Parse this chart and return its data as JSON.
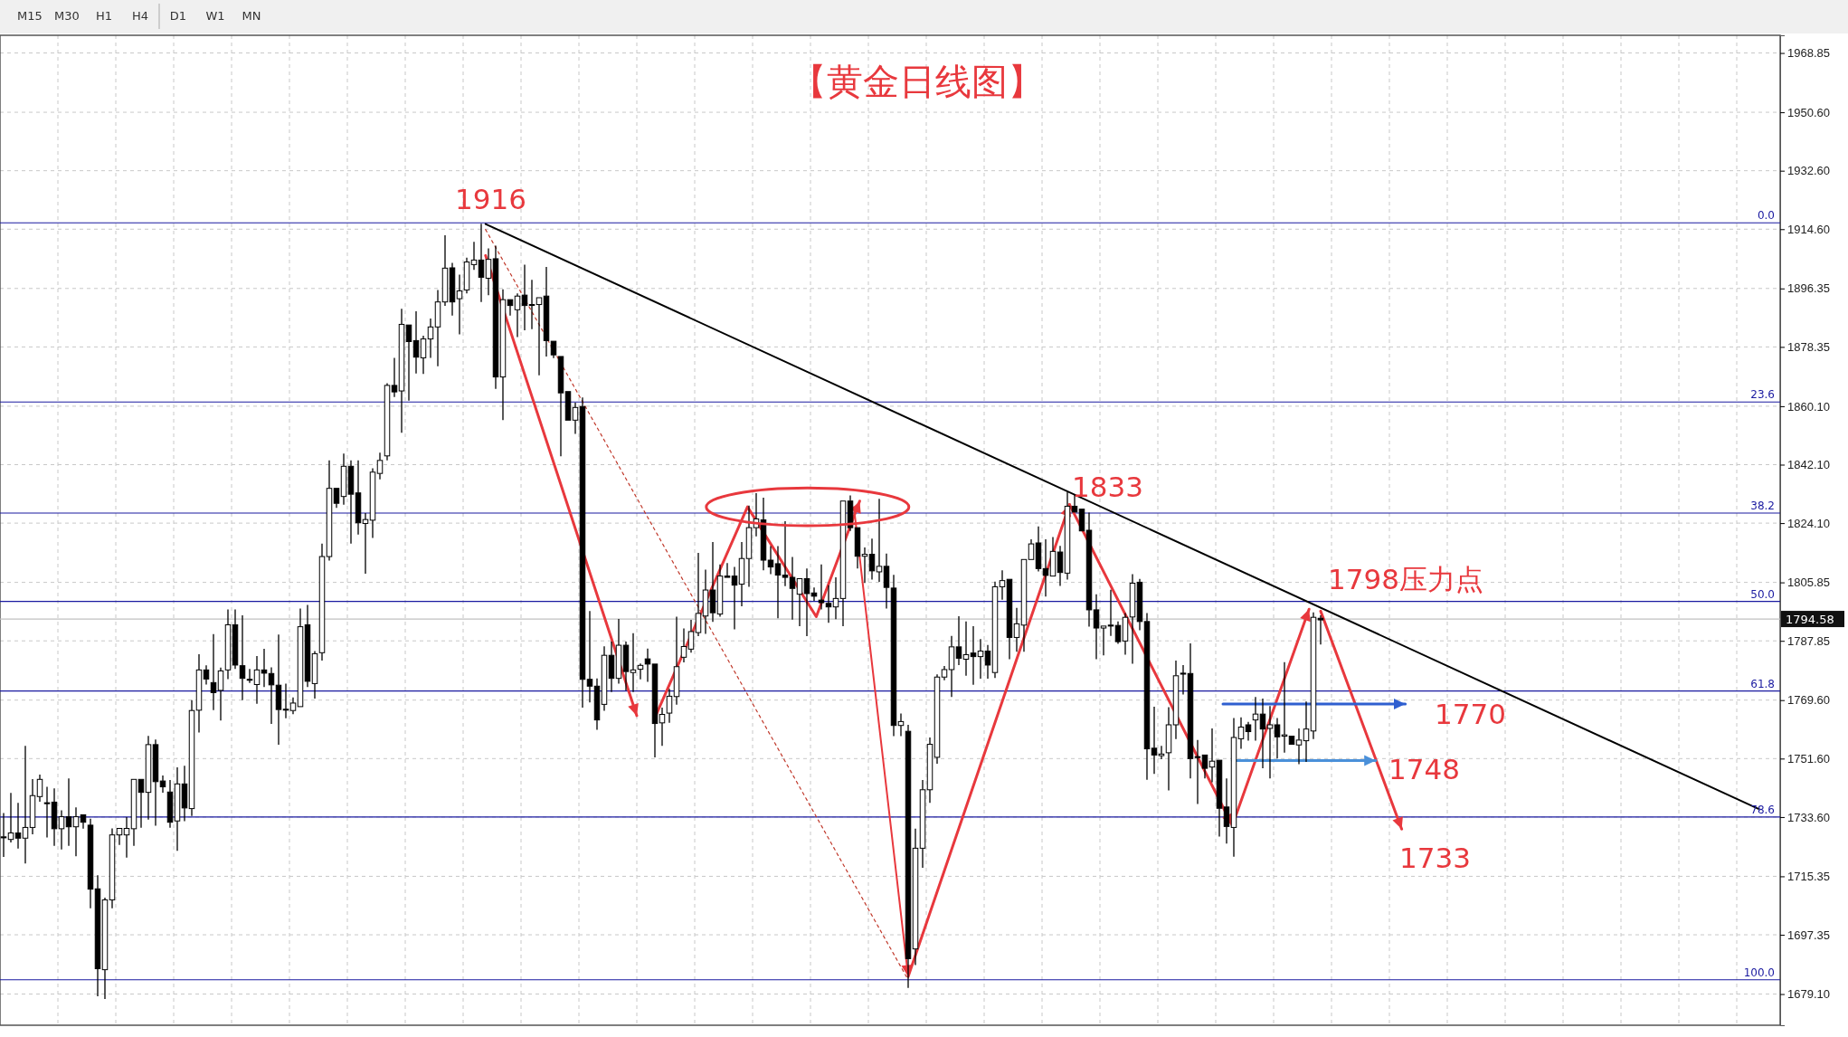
{
  "chart_data": {
    "type": "candlestick",
    "title": "【黄金日线图】",
    "categories": [
      null,
      null,
      null,
      null,
      null,
      null,
      null,
      null,
      null,
      null,
      null,
      null,
      null,
      null,
      null,
      null,
      null,
      null,
      null,
      null,
      null,
      null,
      null,
      null,
      null,
      null,
      null,
      null,
      null,
      null,
      null,
      null,
      null,
      null,
      null,
      null,
      null,
      null,
      null,
      null,
      null,
      null,
      null,
      null,
      null,
      null,
      null,
      null,
      null,
      null,
      null,
      null,
      null,
      null,
      null,
      null,
      null,
      null,
      null,
      null,
      null,
      null,
      null,
      null,
      null,
      null,
      null,
      null,
      null,
      null,
      null,
      null,
      null,
      null,
      null,
      null,
      null,
      null,
      null,
      null,
      null,
      null,
      null,
      null,
      null,
      null,
      null,
      null,
      null,
      null,
      null,
      null,
      null,
      null,
      null,
      null,
      null,
      null,
      null,
      null,
      null,
      null,
      null,
      null,
      null,
      null,
      null,
      null,
      null,
      null,
      null,
      null,
      null,
      null,
      null,
      null,
      null,
      null,
      null,
      null,
      null,
      null,
      null,
      null,
      null,
      null,
      null,
      null,
      null,
      null,
      null,
      null,
      null,
      null,
      null,
      null,
      null,
      null,
      null,
      null,
      null,
      null,
      null,
      null,
      null,
      null,
      null,
      null,
      null,
      null,
      null,
      null,
      null,
      null,
      null,
      null,
      null,
      null,
      null,
      null,
      null,
      null,
      null,
      null,
      null,
      null,
      null,
      null,
      null,
      null,
      null,
      null,
      null,
      null,
      null,
      null,
      null,
      null,
      null,
      null,
      null,
      null,
      null,
      null,
      null,
      null,
      null,
      null,
      null,
      null,
      null,
      null,
      null,
      null,
      null,
      null,
      null,
      null,
      null,
      null,
      null,
      null,
      null,
      null,
      null,
      null,
      null,
      null,
      null,
      null,
      null,
      null,
      null,
      null,
      null,
      null,
      null,
      null,
      null,
      null,
      null,
      null,
      null,
      null,
      null,
      null,
      null,
      null,
      null,
      null,
      null,
      null,
      null,
      null,
      null,
      null,
      null,
      null,
      null,
      null,
      null,
      null,
      null,
      null,
      null,
      null
    ],
    "ohlc": [
      [
        1727.5,
        1734.8,
        1721.3,
        1727.2
      ],
      [
        1726.7,
        1741.0,
        1725.8,
        1728.7
      ],
      [
        1728.7,
        1738.0,
        1723.9,
        1727.1
      ],
      [
        1727.1,
        1755.5,
        1719.3,
        1730.4
      ],
      [
        1730.4,
        1745.3,
        1728.3,
        1740.2
      ],
      [
        1739.9,
        1746.7,
        1738.3,
        1745.2
      ],
      [
        1738.0,
        1742.9,
        1727.3,
        1737.8
      ],
      [
        1738.2,
        1742.4,
        1724.7,
        1730.0
      ],
      [
        1730.0,
        1735.7,
        1723.6,
        1733.7
      ],
      [
        1733.7,
        1745.5,
        1724.7,
        1730.6
      ],
      [
        1730.6,
        1736.6,
        1721.5,
        1733.7
      ],
      [
        1734.3,
        1734.8,
        1730.0,
        1732.0
      ],
      [
        1731.1,
        1733.1,
        1705.5,
        1711.4
      ],
      [
        1711.5,
        1715.7,
        1678.4,
        1686.9
      ],
      [
        1686.6,
        1708.8,
        1677.6,
        1708.1
      ],
      [
        1708.1,
        1730.1,
        1705.5,
        1728.1
      ],
      [
        1728.1,
        1730.1,
        1725.0,
        1730.1
      ],
      [
        1728.1,
        1733.6,
        1721.1,
        1730.1
      ],
      [
        1730.0,
        1745.2,
        1724.7,
        1745.2
      ],
      [
        1745.2,
        1745.2,
        1730.3,
        1741.2
      ],
      [
        1741.2,
        1758.6,
        1732.8,
        1755.9
      ],
      [
        1755.9,
        1757.5,
        1730.9,
        1744.5
      ],
      [
        1744.7,
        1746.4,
        1741.1,
        1742.9
      ],
      [
        1741.3,
        1745.0,
        1730.3,
        1732.0
      ],
      [
        1732.4,
        1748.9,
        1723.2,
        1743.8
      ],
      [
        1743.8,
        1749.4,
        1732.3,
        1736.4
      ],
      [
        1736.2,
        1769.6,
        1733.9,
        1766.4
      ],
      [
        1766.5,
        1783.7,
        1759.6,
        1778.9
      ],
      [
        1778.9,
        1780.3,
        1774.4,
        1776.1
      ],
      [
        1775.0,
        1789.9,
        1766.5,
        1771.9
      ],
      [
        1772.6,
        1779.6,
        1763.3,
        1778.6
      ],
      [
        1778.9,
        1797.5,
        1776.1,
        1792.8
      ],
      [
        1792.8,
        1797.5,
        1779.2,
        1780.4
      ],
      [
        1780.2,
        1795.7,
        1769.6,
        1776.3
      ],
      [
        1776.0,
        1779.2,
        1774.9,
        1775.9
      ],
      [
        1774.4,
        1783.2,
        1768.5,
        1778.9
      ],
      [
        1778.9,
        1785.4,
        1773.6,
        1777.9
      ],
      [
        1777.8,
        1779.7,
        1762.3,
        1774.3
      ],
      [
        1774.2,
        1789.8,
        1755.9,
        1766.7
      ],
      [
        1766.8,
        1774.7,
        1764.0,
        1766.7
      ],
      [
        1766.4,
        1770.4,
        1765.3,
        1768.7
      ],
      [
        1767.6,
        1797.8,
        1767.2,
        1792.2
      ],
      [
        1792.8,
        1798.9,
        1773.6,
        1775.4
      ],
      [
        1774.7,
        1784.7,
        1770.1,
        1783.9
      ],
      [
        1784.2,
        1817.8,
        1781.8,
        1813.8
      ],
      [
        1813.8,
        1843.4,
        1812.6,
        1834.8
      ],
      [
        1834.8,
        1834.8,
        1828.8,
        1830.2
      ],
      [
        1832.3,
        1845.5,
        1829.8,
        1841.6
      ],
      [
        1841.6,
        1843.4,
        1817.8,
        1833.0
      ],
      [
        1833.4,
        1843.4,
        1820.6,
        1824.2
      ],
      [
        1824.0,
        1827.2,
        1808.5,
        1825.2
      ],
      [
        1825.0,
        1841.0,
        1819.5,
        1839.8
      ],
      [
        1839.4,
        1845.8,
        1837.6,
        1843.4
      ],
      [
        1844.8,
        1867.2,
        1843.4,
        1866.5
      ],
      [
        1866.5,
        1875.0,
        1862.9,
        1864.5
      ],
      [
        1864.8,
        1890.1,
        1851.9,
        1885.3
      ],
      [
        1885.1,
        1885.1,
        1861.8,
        1880.0
      ],
      [
        1880.3,
        1889.3,
        1870.2,
        1875.2
      ],
      [
        1875.0,
        1881.8,
        1870.0,
        1880.8
      ],
      [
        1880.8,
        1887.1,
        1875.0,
        1884.5
      ],
      [
        1884.5,
        1895.9,
        1872.4,
        1892.2
      ],
      [
        1892.2,
        1912.7,
        1891.0,
        1902.6
      ],
      [
        1902.7,
        1904.2,
        1888.0,
        1892.2
      ],
      [
        1893.2,
        1900.6,
        1882.2,
        1895.6
      ],
      [
        1895.9,
        1905.8,
        1894.8,
        1904.5
      ],
      [
        1903.7,
        1910.7,
        1902.1,
        1905.1
      ],
      [
        1905.1,
        1916.3,
        1892.2,
        1899.8
      ],
      [
        1899.5,
        1908.7,
        1894.3,
        1905.3
      ],
      [
        1905.5,
        1909.5,
        1865.4,
        1869.1
      ],
      [
        1869.1,
        1896.1,
        1855.8,
        1892.9
      ],
      [
        1892.9,
        1893.0,
        1888.0,
        1891.1
      ],
      [
        1889.8,
        1894.8,
        1881.4,
        1894.0
      ],
      [
        1894.3,
        1903.7,
        1883.5,
        1891.1
      ],
      [
        1891.4,
        1899.0,
        1883.8,
        1891.3
      ],
      [
        1891.4,
        1894.0,
        1869.6,
        1893.5
      ],
      [
        1894.0,
        1903.0,
        1875.4,
        1880.3
      ],
      [
        1880.1,
        1880.6,
        1874.9,
        1875.9
      ],
      [
        1875.4,
        1875.9,
        1844.7,
        1864.2
      ],
      [
        1864.6,
        1864.9,
        1855.8,
        1855.8
      ],
      [
        1855.8,
        1861.2,
        1851.6,
        1859.7
      ],
      [
        1860.0,
        1862.8,
        1767.3,
        1776.0
      ],
      [
        1776.0,
        1797.0,
        1768.9,
        1773.9
      ],
      [
        1773.9,
        1776.3,
        1760.5,
        1763.5
      ],
      [
        1768.3,
        1786.2,
        1766.3,
        1783.4
      ],
      [
        1783.4,
        1787.6,
        1772.1,
        1776.3
      ],
      [
        1776.3,
        1794.6,
        1774.7,
        1786.5
      ],
      [
        1786.5,
        1787.6,
        1772.6,
        1778.4
      ],
      [
        1778.1,
        1790.2,
        1772.1,
        1778.9
      ],
      [
        1779.1,
        1780.9,
        1776.0,
        1780.3
      ],
      [
        1782.3,
        1785.5,
        1775.2,
        1780.7
      ],
      [
        1780.7,
        1781.0,
        1752.0,
        1762.4
      ],
      [
        1762.6,
        1767.3,
        1755.5,
        1765.2
      ],
      [
        1765.6,
        1773.1,
        1762.6,
        1770.8
      ],
      [
        1770.7,
        1795.3,
        1768.2,
        1779.9
      ],
      [
        1782.8,
        1791.7,
        1781.2,
        1786.1
      ],
      [
        1785.3,
        1794.3,
        1784.2,
        1790.7
      ],
      [
        1790.4,
        1814.9,
        1789.3,
        1796.3
      ],
      [
        1795.5,
        1809.8,
        1790.0,
        1803.5
      ],
      [
        1803.5,
        1818.3,
        1793.7,
        1796.5
      ],
      [
        1796.1,
        1811.4,
        1795.3,
        1807.8
      ],
      [
        1807.8,
        1811.8,
        1807.0,
        1807.4
      ],
      [
        1807.8,
        1810.6,
        1791.4,
        1805.0
      ],
      [
        1805.3,
        1818.3,
        1798.5,
        1813.2
      ],
      [
        1813.2,
        1829.5,
        1804.5,
        1822.7
      ],
      [
        1822.7,
        1833.3,
        1820.0,
        1825.4
      ],
      [
        1825.1,
        1831.9,
        1809.6,
        1812.7
      ],
      [
        1812.7,
        1817.0,
        1808.4,
        1810.6
      ],
      [
        1811.6,
        1817.0,
        1794.8,
        1808.1
      ],
      [
        1808.1,
        1824.7,
        1804.7,
        1807.4
      ],
      [
        1807.4,
        1813.7,
        1794.4,
        1804.0
      ],
      [
        1802.2,
        1807.5,
        1792.4,
        1807.0
      ],
      [
        1807.0,
        1810.1,
        1789.3,
        1802.4
      ],
      [
        1802.6,
        1804.3,
        1800.2,
        1801.6
      ],
      [
        1800.4,
        1811.4,
        1797.5,
        1799.6
      ],
      [
        1799.4,
        1805.0,
        1793.4,
        1798.3
      ],
      [
        1798.3,
        1807.4,
        1794.5,
        1800.9
      ],
      [
        1800.9,
        1831.3,
        1792.4,
        1830.9
      ],
      [
        1830.9,
        1832.6,
        1821.7,
        1822.7
      ],
      [
        1822.7,
        1822.7,
        1810.1,
        1813.9
      ],
      [
        1813.9,
        1816.6,
        1805.7,
        1814.5
      ],
      [
        1814.5,
        1819.3,
        1806.7,
        1809.4
      ],
      [
        1809.1,
        1831.6,
        1806.0,
        1810.8
      ],
      [
        1810.8,
        1814.7,
        1797.8,
        1804.3
      ],
      [
        1804.1,
        1808.2,
        1758.5,
        1761.8
      ],
      [
        1761.8,
        1765.5,
        1758.5,
        1763.0
      ],
      [
        1760,
        1762,
        1681,
        1690
      ],
      [
        1693,
        1730,
        1688,
        1724
      ],
      [
        1724,
        1745,
        1718,
        1742
      ],
      [
        1742,
        1758.1,
        1738,
        1756
      ],
      [
        1752,
        1777.5,
        1750,
        1776.7
      ],
      [
        1776.7,
        1780.1,
        1775.7,
        1779.0
      ],
      [
        1779.0,
        1789.4,
        1770.6,
        1786.0
      ],
      [
        1786.0,
        1795.4,
        1780.4,
        1782.5
      ],
      [
        1782.2,
        1793.8,
        1777.1,
        1783.6
      ],
      [
        1784.1,
        1792.4,
        1774.3,
        1783.0
      ],
      [
        1783.0,
        1788.4,
        1776.2,
        1784.7
      ],
      [
        1784.7,
        1786.6,
        1776.2,
        1780.4
      ],
      [
        1778.1,
        1806.1,
        1776.4,
        1804.5
      ],
      [
        1804.5,
        1809.6,
        1800.5,
        1806.4
      ],
      [
        1806.8,
        1807.3,
        1782.2,
        1788.9
      ],
      [
        1788.9,
        1798.0,
        1784.5,
        1793.1
      ],
      [
        1792.7,
        1813.2,
        1784.5,
        1812.9
      ],
      [
        1812.9,
        1819.1,
        1812.9,
        1817.7
      ],
      [
        1818.0,
        1823.1,
        1809.2,
        1810.1
      ],
      [
        1810.1,
        1819.1,
        1801.5,
        1808.0
      ],
      [
        1807.8,
        1819.8,
        1807.8,
        1815.4
      ],
      [
        1815.2,
        1817.1,
        1804.8,
        1808.9
      ],
      [
        1808.7,
        1833.6,
        1806.7,
        1829.3
      ],
      [
        1829.3,
        1833.0,
        1827.3,
        1827.5
      ],
      [
        1828.4,
        1828.4,
        1821.2,
        1821.7
      ],
      [
        1821.9,
        1827.3,
        1792.2,
        1797.4
      ],
      [
        1797.4,
        1802.2,
        1782.2,
        1791.8
      ],
      [
        1791.8,
        1792.5,
        1783.4,
        1792.4
      ],
      [
        1792.7,
        1803.6,
        1789.4,
        1792.4
      ],
      [
        1792.6,
        1793.8,
        1786.9,
        1787.6
      ],
      [
        1787.8,
        1796.4,
        1783.6,
        1795.1
      ],
      [
        1795.2,
        1808.4,
        1780.8,
        1805.6
      ],
      [
        1805.9,
        1806.9,
        1791.1,
        1793.8
      ],
      [
        1793.8,
        1796.4,
        1745.1,
        1754.6
      ],
      [
        1754.8,
        1767.6,
        1746.9,
        1752.7
      ],
      [
        1752.5,
        1755.5,
        1751.4,
        1753.0
      ],
      [
        1753.4,
        1767.4,
        1741.8,
        1762.0
      ],
      [
        1762.0,
        1781.8,
        1757.6,
        1777.1
      ],
      [
        1777.9,
        1780.4,
        1771.3,
        1777.6
      ],
      [
        1777.8,
        1787.1,
        1745.5,
        1751.6
      ],
      [
        1752.2,
        1757.3,
        1737.6,
        1752.1
      ],
      [
        1752.7,
        1752.7,
        1745.5,
        1748.6
      ],
      [
        1749.0,
        1760.9,
        1744.3,
        1750.8
      ],
      [
        1751.1,
        1751.1,
        1727.6,
        1736.3
      ],
      [
        1736.7,
        1745.5,
        1725.4,
        1730.7
      ],
      [
        1730.4,
        1764.1,
        1721.4,
        1758.1
      ],
      [
        1757.7,
        1764.3,
        1754.6,
        1761.3
      ],
      [
        1762.0,
        1762.9,
        1757.1,
        1759.9
      ],
      [
        1763.5,
        1770.6,
        1757.1,
        1765.3
      ],
      [
        1765.3,
        1770.1,
        1748.6,
        1760.7
      ],
      [
        1760.9,
        1767.8,
        1745.5,
        1762.0
      ],
      [
        1762.0,
        1764.1,
        1751.6,
        1758.3
      ],
      [
        1758.5,
        1781.3,
        1753.4,
        1758.9
      ],
      [
        1758.5,
        1758.8,
        1755.8,
        1756.0
      ],
      [
        1755.8,
        1760.9,
        1749.9,
        1757.3
      ],
      [
        1757.1,
        1769.2,
        1750.6,
        1760.7
      ],
      [
        1760.1,
        1796.6,
        1757.6,
        1795.1
      ],
      [
        1794.8,
        1795.7,
        1786.7,
        1794.3
      ],
      null,
      null,
      null,
      null,
      null,
      null,
      null,
      null,
      null,
      null,
      null,
      null,
      null,
      null,
      null,
      null,
      null,
      null,
      null,
      null,
      null,
      null,
      null,
      null,
      null,
      null,
      null,
      null,
      null,
      null,
      null,
      null,
      null,
      null,
      null,
      null,
      null,
      null,
      null,
      null,
      null,
      null,
      null,
      null,
      null,
      null,
      null,
      null,
      null,
      null,
      null,
      null,
      null,
      null,
      null,
      null,
      null,
      null,
      null,
      null,
      null,
      null,
      null
    ],
    "ref_lines": [
      {
        "axis": "y",
        "value": 1916.56,
        "color": "#1a1aa0"
      },
      {
        "axis": "y",
        "value": 1861.4,
        "color": "#1a1aa0"
      },
      {
        "axis": "y",
        "value": 1827.2,
        "color": "#1a1aa0"
      },
      {
        "axis": "y",
        "value": 1800.0,
        "color": "#1a1aa0"
      },
      {
        "axis": "y",
        "value": 1772.4,
        "color": "#1a1aa0"
      },
      {
        "axis": "y",
        "value": 1733.6,
        "color": "#1a1aa0"
      },
      {
        "axis": "y",
        "value": 1683.5,
        "color": "#1a1aa0"
      },
      {
        "axis": "y",
        "value": 1794.58,
        "label": "1794.58",
        "color": "#c0c0c0"
      }
    ],
    "annotations": [
      "M15",
      "M30",
      "H1",
      "H4",
      "D1",
      "W1",
      "MN",
      {
        "text": "1916",
        "y": 1916.3
      },
      "1833",
      "1798压力点",
      "1770",
      "1748",
      "1733",
      {
        "text": "0.0",
        "y": 1916.56
      },
      {
        "text": "23.6",
        "y": 1861.4
      },
      {
        "text": "38.2",
        "y": 1827.2
      },
      {
        "text": "50.0",
        "y": 1800.0
      },
      {
        "text": "61.8",
        "y": 1772.4
      },
      {
        "text": "78.6",
        "y": 1733.6
      },
      {
        "text": "100.0",
        "y": 1683.5
      }
    ],
    "ylim": [
      1669.5,
      1974.3
    ],
    "yticks": [
      {
        "value": 1968.85,
        "label": "1968.85"
      },
      {
        "value": 1950.6,
        "label": "1950.60"
      },
      {
        "value": 1932.6,
        "label": "1932.60"
      },
      {
        "value": 1914.6,
        "label": "1914.60"
      },
      {
        "value": 1896.35,
        "label": "1896.35"
      },
      {
        "value": 1878.35,
        "label": "1878.35"
      },
      {
        "value": 1860.1,
        "label": "1860.10"
      },
      {
        "value": 1842.1,
        "label": "1842.10"
      },
      {
        "value": 1824.1,
        "label": "1824.10"
      },
      {
        "value": 1805.85,
        "label": "1805.85"
      },
      {
        "value": 1787.85,
        "label": "1787.85"
      },
      {
        "value": 1769.6,
        "label": "1769.60"
      },
      {
        "value": 1751.6,
        "label": "1751.60"
      },
      {
        "value": 1733.6,
        "label": "1733.60"
      },
      {
        "value": 1715.35,
        "label": "1715.35"
      },
      {
        "value": 1697.35,
        "label": "1697.35"
      },
      {
        "value": 1679.1,
        "label": "1679.10"
      }
    ],
    "grid": true,
    "tick_labels": "y"
  }
}
